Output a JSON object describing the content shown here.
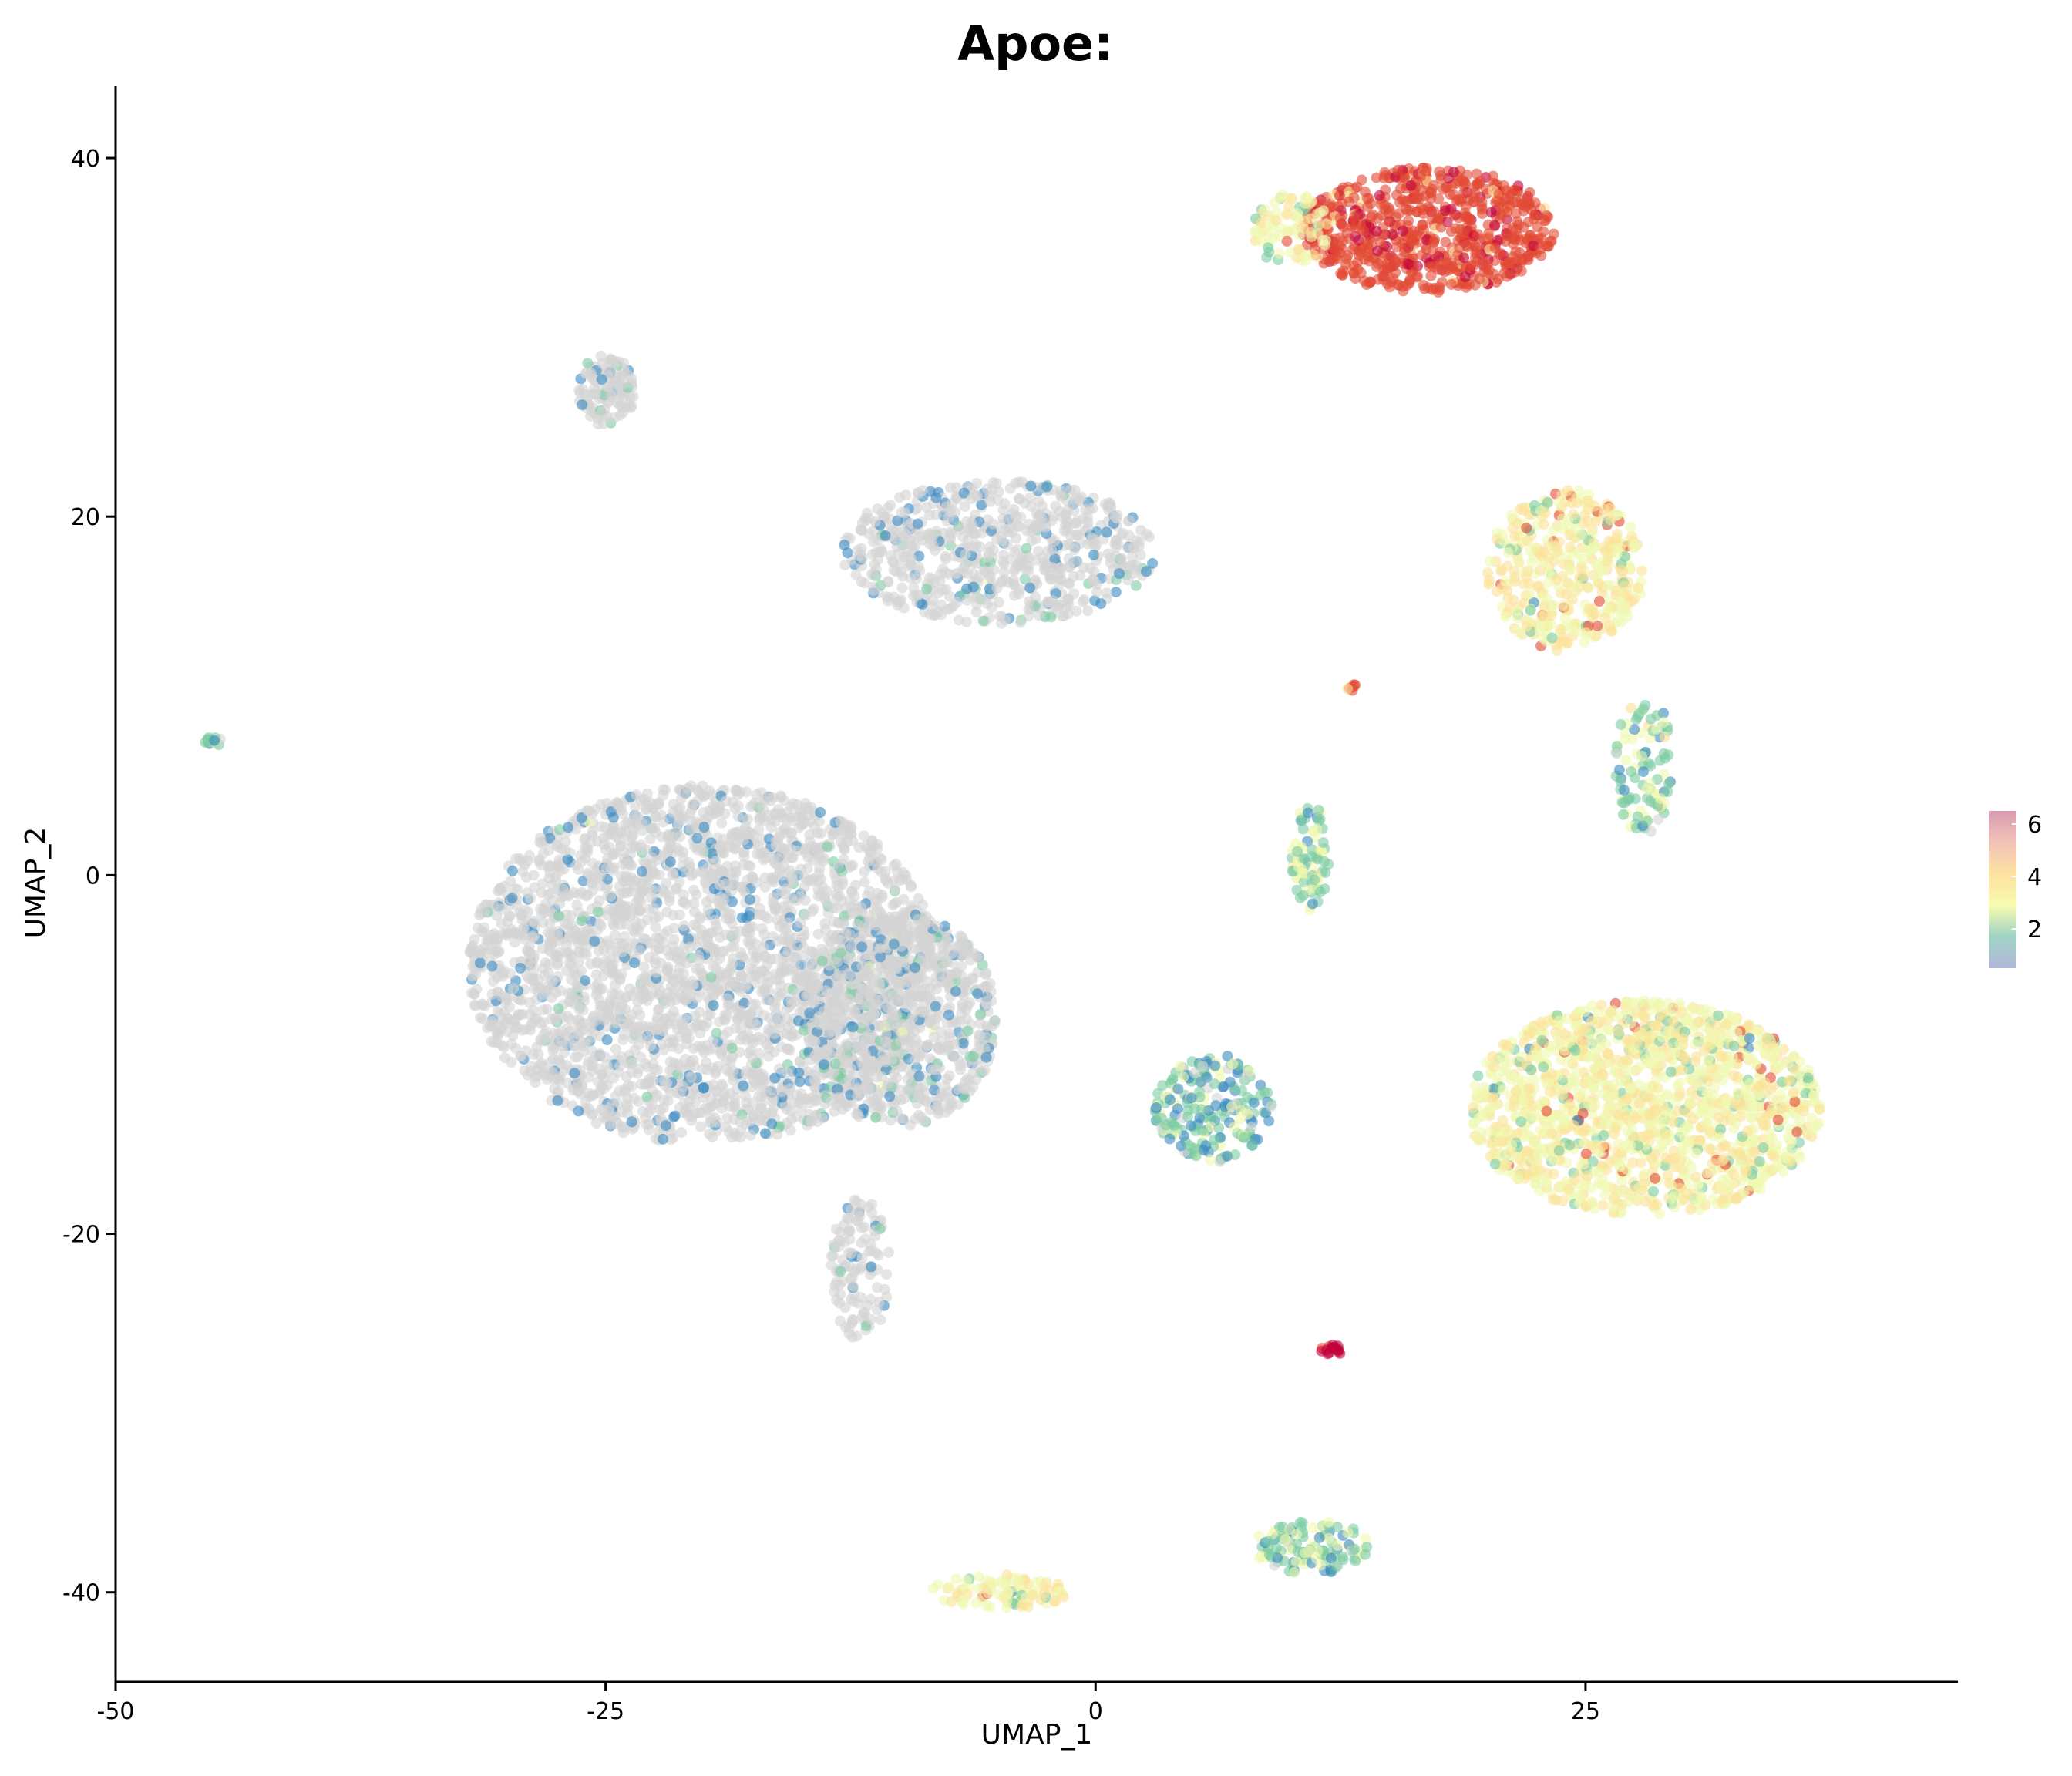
{
  "chart_data": {
    "type": "scatter",
    "title": "Apoe:",
    "xlabel": "UMAP_1",
    "ylabel": "UMAP_2",
    "xlim": [
      -50,
      44
    ],
    "ylim": [
      -45,
      44
    ],
    "xticks": [
      -50,
      -25,
      0,
      25
    ],
    "yticks": [
      40,
      20,
      0,
      -20,
      -40
    ],
    "grid": false,
    "legend": {
      "placement": "right",
      "type": "colorbar",
      "ticks": [
        6,
        4,
        2
      ],
      "range": [
        0.5,
        6.5
      ],
      "colors": [
        "#b3b7da",
        "#9fd3c4",
        "#f7fbb0",
        "#fde1a0",
        "#f2c3b7",
        "#d99bb2"
      ]
    },
    "colors": {
      "not_expressed": "#d3d3d3",
      "low": "#3b8bc2",
      "mid_low": "#7ccba2",
      "mid": "#f0f8b0",
      "mid_high": "#fbe39a",
      "high": "#e34a33",
      "max": "#c2003a"
    },
    "clusters": [
      {
        "cx": 17,
        "cy": 36,
        "rx": 6.5,
        "ry": 3.5,
        "value": 4.8,
        "n": 700
      },
      {
        "cx": 10,
        "cy": 36,
        "rx": 2,
        "ry": 2,
        "value": 2.5,
        "n": 80
      },
      {
        "cx": 24,
        "cy": 17,
        "rx": 4,
        "ry": 4.5,
        "value": 2.8,
        "n": 400
      },
      {
        "cx": 28,
        "cy": 6,
        "rx": 1.5,
        "ry": 4,
        "value": 1.5,
        "n": 100
      },
      {
        "cx": 11,
        "cy": 1,
        "rx": 1,
        "ry": 3,
        "value": 1.6,
        "n": 80
      },
      {
        "cx": 13,
        "cy": 10.5,
        "rx": 0.3,
        "ry": 0.2,
        "value": 4.5,
        "n": 6
      },
      {
        "cx": 28,
        "cy": -13,
        "rx": 9,
        "ry": 6,
        "value": 2.6,
        "n": 1500
      },
      {
        "cx": 6,
        "cy": -13,
        "rx": 3,
        "ry": 3,
        "value": 1.2,
        "n": 200
      },
      {
        "cx": 12,
        "cy": -26.5,
        "rx": 0.6,
        "ry": 0.3,
        "value": 6,
        "n": 15
      },
      {
        "cx": 11,
        "cy": -37.5,
        "rx": 3,
        "ry": 1.5,
        "value": 1.5,
        "n": 120
      },
      {
        "cx": -5,
        "cy": -40,
        "rx": 3.5,
        "ry": 1,
        "value": 2.6,
        "n": 100
      },
      {
        "cx": -45,
        "cy": 7.5,
        "rx": 0.5,
        "ry": 0.3,
        "value": 1.4,
        "n": 12
      },
      {
        "cx": -25,
        "cy": 27,
        "rx": 1.5,
        "ry": 2,
        "value": 0.2,
        "n": 120
      },
      {
        "cx": -5,
        "cy": 18,
        "rx": 8,
        "ry": 4,
        "value": 0.4,
        "n": 700
      },
      {
        "cx": -20,
        "cy": -5,
        "rx": 12,
        "ry": 10,
        "value": 0.15,
        "n": 3000
      },
      {
        "cx": -10,
        "cy": -8,
        "rx": 5,
        "ry": 6,
        "value": 0.6,
        "n": 800
      },
      {
        "cx": -12,
        "cy": -22,
        "rx": 1.5,
        "ry": 4,
        "value": 0.4,
        "n": 120
      }
    ]
  }
}
